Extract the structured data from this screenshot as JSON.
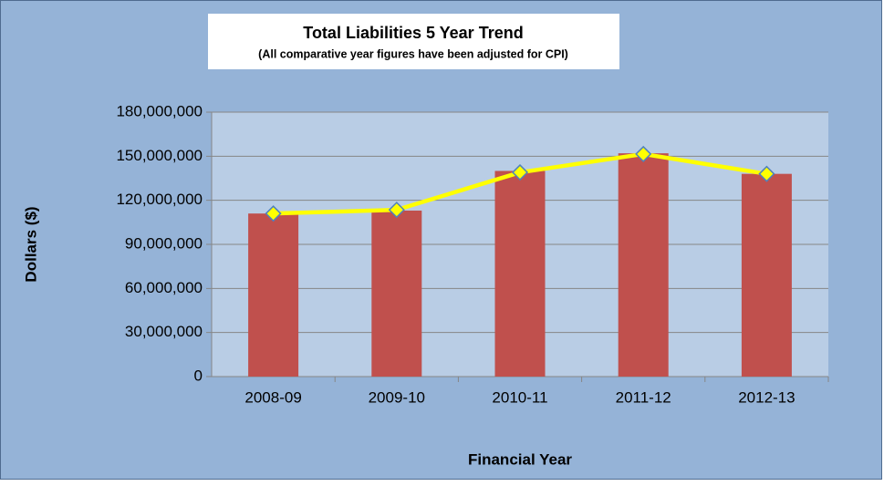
{
  "chart_data": {
    "type": "combo",
    "title": "Total Liabilities 5 Year Trend",
    "subtitle": "(All comparative year figures have been adjusted for CPI)",
    "x_label": "Financial Year",
    "y_label": "Dollars ($)",
    "categories": [
      "2008-09",
      "2009-10",
      "2010-11",
      "2011-12",
      "2012-13"
    ],
    "series": [
      {
        "type": "bar",
        "color": "#c0504d",
        "values": [
          111000000,
          113000000,
          140000000,
          152000000,
          138000000
        ]
      },
      {
        "type": "line",
        "color": "#ffff00",
        "values": [
          111000000,
          113500000,
          139000000,
          151500000,
          138000000
        ]
      }
    ],
    "ylim": [
      0,
      180000000
    ],
    "yticks": [
      0,
      {
        "value": 30000000,
        "label": "30,000,000"
      },
      {
        "value": 60000000,
        "label": "60,000,000"
      },
      {
        "value": 90000000,
        "label": "90,000,000"
      },
      {
        "value": 120000000,
        "label": "120,000,000"
      },
      {
        "value": 150000000,
        "label": "150,000,000"
      },
      {
        "value": 180000000,
        "label": "180,000,000"
      }
    ],
    "grid": true
  }
}
